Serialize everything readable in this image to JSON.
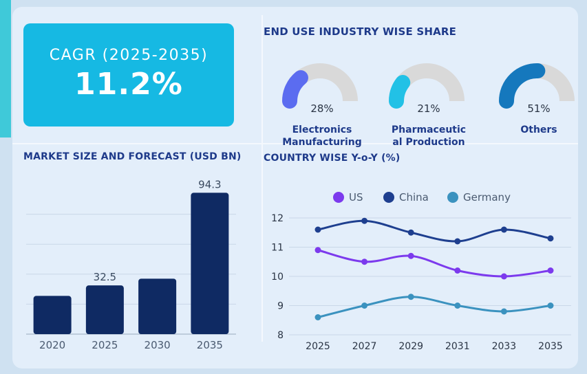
{
  "cagr": {
    "label": "CAGR (2025-2035)",
    "value": "11.2%"
  },
  "colors": {
    "dark_navy": "#0f2a63",
    "us": "#7c3aed",
    "china": "#1e3f8f",
    "germany": "#3b92bf",
    "cagr_bg": "#16b9e3",
    "electronics": "#5b6cf0",
    "pharma": "#22c1e6",
    "others": "#1578bd",
    "gauge_track": "#d9d9d9"
  },
  "market": {
    "title": "MARKET SIZE AND FORECAST (USD BN)",
    "chart_data": {
      "type": "bar",
      "categories": [
        "2020",
        "2025",
        "2030",
        "2035"
      ],
      "values": [
        25.5,
        32.5,
        37.0,
        94.3
      ],
      "data_labels": [
        "",
        "32.5",
        "",
        "94.3"
      ],
      "ylim": [
        0,
        100
      ],
      "grid": true
    }
  },
  "end_use": {
    "title": "END USE INDUSTRY WISE SHARE",
    "chart_data": {
      "type": "pie",
      "items": [
        {
          "name": "Electronics Manufacturing",
          "label_lines": [
            "Electronics",
            "Manufacturing"
          ],
          "value": 28,
          "value_label": "28%",
          "color": "#5b6cf0"
        },
        {
          "name": "Pharmaceutical Production",
          "label_lines": [
            "Pharmaceutic",
            "al Production"
          ],
          "value": 21,
          "value_label": "21%",
          "color": "#22c1e6"
        },
        {
          "name": "Others",
          "label_lines": [
            "Others"
          ],
          "value": 51,
          "value_label": "51%",
          "color": "#1578bd"
        }
      ]
    }
  },
  "country": {
    "title": "COUNTRY WISE Y-o-Y (%)",
    "chart_data": {
      "type": "line",
      "x": [
        "2025",
        "2027",
        "2029",
        "2031",
        "2033",
        "2035"
      ],
      "series": [
        {
          "name": "US",
          "values": [
            10.9,
            10.5,
            10.7,
            10.2,
            10.0,
            10.2
          ],
          "color": "#7c3aed"
        },
        {
          "name": "China",
          "values": [
            11.6,
            11.9,
            11.5,
            11.2,
            11.6,
            11.3
          ],
          "color": "#1e3f8f"
        },
        {
          "name": "Germany",
          "values": [
            8.6,
            9.0,
            9.3,
            9.0,
            8.8,
            9.0
          ],
          "color": "#3b92bf"
        }
      ],
      "y_ticks": [
        "8",
        "9",
        "10",
        "11",
        "12"
      ],
      "ylim": [
        8,
        12
      ],
      "grid": true,
      "legend": "top"
    }
  }
}
